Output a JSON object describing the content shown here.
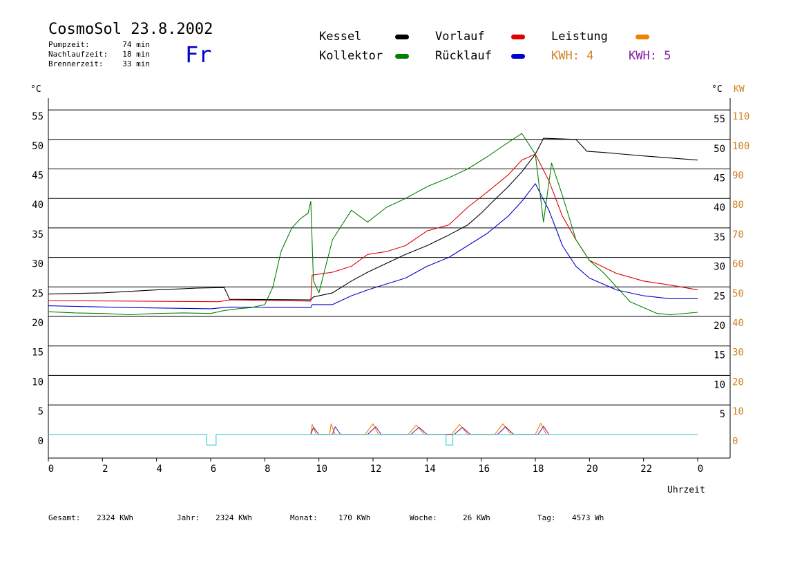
{
  "header": {
    "title": "CosmoSol 23.8.2002",
    "day": "Fr",
    "info": [
      {
        "label": "Pumpzeit:",
        "value": "74 min"
      },
      {
        "label": "Nachlaufzeit:",
        "value": "18 min"
      },
      {
        "label": "Brennerzeit:",
        "value": "33 min"
      }
    ]
  },
  "legend": {
    "kessel": {
      "label": "Kessel",
      "color": "#000000"
    },
    "kollektor": {
      "label": "Kollektor",
      "color": "#008000"
    },
    "vorlauf": {
      "label": "Vorlauf",
      "color": "#e00000"
    },
    "ruecklauf": {
      "label": "Rücklauf",
      "color": "#0000cc"
    },
    "leistung": {
      "label": "Leistung",
      "color": "#f08000"
    },
    "kwh4": {
      "label": "KWH: 4",
      "color": "#d08020"
    },
    "kwh5": {
      "label": "KWH: 5",
      "color": "#8020a0"
    }
  },
  "axes": {
    "left_unit": "°C",
    "right_unit": "°C",
    "right_unit2": "KW",
    "x_label": "Uhrzeit"
  },
  "footer": [
    {
      "label": "Gesamt:",
      "value": "2324 KWh"
    },
    {
      "label": "Jahr:",
      "value": "2324 KWh"
    },
    {
      "label": "Monat:",
      "value": "170 KWh"
    },
    {
      "label": "Woche:",
      "value": "26 KWh"
    },
    {
      "label": "Tag:",
      "value": "4573 Wh"
    }
  ],
  "chart_data": {
    "type": "line",
    "x_range": [
      0,
      24
    ],
    "x_ticks": [
      "0",
      "2",
      "4",
      "6",
      "8",
      "10",
      "12",
      "14",
      "16",
      "18",
      "20",
      "22",
      "0"
    ],
    "y_range": [
      -4,
      57
    ],
    "y_ticks_left": [
      "0",
      "5",
      "10",
      "15",
      "20",
      "25",
      "30",
      "35",
      "40",
      "45",
      "50",
      "55"
    ],
    "y_ticks_right": [
      "",
      "5",
      "10",
      "15",
      "20",
      "25",
      "30",
      "35",
      "40",
      "45",
      "50",
      "55"
    ],
    "y2_ticks_right": [
      "0",
      "10",
      "20",
      "30",
      "40",
      "50",
      "60",
      "70",
      "80",
      "90",
      "100",
      "110"
    ],
    "grid_y": true,
    "series": [
      {
        "key": "kessel",
        "name": "Kessel",
        "color": "#000000",
        "x": [
          0,
          2,
          4,
          5.5,
          6.5,
          6.7,
          9.7,
          9.8,
          10.5,
          11.2,
          11.8,
          12.5,
          13.2,
          14,
          14.8,
          15.5,
          16,
          16.5,
          17,
          17.5,
          18,
          18.3,
          19.5,
          19.9,
          20.5,
          22,
          24
        ],
        "y": [
          23.8,
          24.0,
          24.5,
          24.8,
          24.9,
          22.9,
          22.8,
          23.3,
          24.0,
          26.0,
          27.5,
          29.0,
          30.5,
          32.0,
          33.8,
          35.5,
          37.5,
          39.8,
          42.0,
          44.5,
          47.5,
          50.2,
          50.0,
          48.0,
          47.8,
          47.2,
          46.5
        ]
      },
      {
        "key": "vorlauf",
        "name": "Vorlauf",
        "color": "#e00000",
        "x": [
          0,
          3,
          6.3,
          6.7,
          9.7,
          9.75,
          10.5,
          11.2,
          11.8,
          12.5,
          13.2,
          14,
          14.8,
          15.5,
          16.2,
          17,
          17.5,
          18,
          18.5,
          19,
          19.5,
          20,
          21,
          22,
          23,
          24
        ],
        "y": [
          22.7,
          22.6,
          22.5,
          22.8,
          22.6,
          27.0,
          27.5,
          28.5,
          30.5,
          31.0,
          32.0,
          34.5,
          35.5,
          38.5,
          41.0,
          44.0,
          46.5,
          47.5,
          43.0,
          37.0,
          33.0,
          29.5,
          27.3,
          26.0,
          25.3,
          24.5
        ]
      },
      {
        "key": "ruecklauf",
        "name": "Rücklauf",
        "color": "#0000cc",
        "x": [
          0,
          3,
          6,
          6.7,
          9.7,
          9.75,
          10.5,
          11.2,
          11.8,
          12.5,
          13.2,
          14,
          14.8,
          15.5,
          16.2,
          17,
          17.5,
          18,
          18.5,
          19,
          19.5,
          20,
          21,
          22,
          23,
          24
        ],
        "y": [
          21.8,
          21.5,
          21.3,
          21.6,
          21.5,
          22.0,
          22.0,
          23.5,
          24.5,
          25.5,
          26.5,
          28.5,
          30.0,
          32.0,
          34.0,
          37.0,
          39.5,
          42.5,
          38.0,
          32.0,
          28.5,
          26.5,
          24.5,
          23.5,
          23.0,
          23.0
        ]
      },
      {
        "key": "kollektor",
        "name": "Kollektor",
        "color": "#008000",
        "x": [
          0,
          1,
          2,
          3,
          4,
          5,
          6,
          6.5,
          7,
          7.5,
          8,
          8.3,
          8.6,
          9,
          9.3,
          9.6,
          9.7,
          9.8,
          10,
          10.5,
          11.2,
          11.8,
          12.5,
          13.2,
          14,
          14.8,
          15.5,
          16.2,
          17,
          17.5,
          18,
          18.3,
          18.6,
          19,
          19.5,
          20,
          20.5,
          21,
          21.5,
          22,
          22.5,
          23,
          24
        ],
        "y": [
          20.8,
          20.6,
          20.5,
          20.3,
          20.5,
          20.6,
          20.5,
          21.0,
          21.3,
          21.5,
          22.0,
          25.0,
          31.0,
          35.0,
          36.5,
          37.5,
          39.5,
          26.0,
          24.0,
          33.0,
          38.0,
          36.0,
          38.5,
          40.0,
          42.0,
          43.5,
          45.0,
          47.0,
          49.5,
          51.0,
          47.5,
          36.0,
          46.0,
          40.5,
          33.0,
          29.5,
          27.5,
          25.0,
          22.5,
          21.5,
          20.5,
          20.3,
          20.7
        ]
      },
      {
        "key": "leistung",
        "name": "Leistung",
        "color": "#f08000",
        "x": [
          9.7,
          9.75,
          9.9,
          10.4,
          10.45,
          10.6,
          11.7,
          12.0,
          12.2,
          13.3,
          13.6,
          13.9,
          14.9,
          15.2,
          15.5,
          16.5,
          16.8,
          17.1,
          18.0,
          18.2,
          18.4
        ],
        "y": [
          0,
          1.7,
          0,
          0,
          1.8,
          0,
          0,
          1.8,
          0,
          0,
          1.6,
          0,
          0,
          1.7,
          0,
          0,
          1.8,
          0,
          0,
          1.9,
          0
        ]
      },
      {
        "key": "kwh5",
        "name": "KWH: 5",
        "color": "#8020a0",
        "x": [
          9.7,
          9.8,
          10.0,
          10.5,
          10.6,
          10.8,
          11.8,
          12.1,
          12.3,
          13.4,
          13.7,
          14.0,
          15.0,
          15.3,
          15.6,
          16.6,
          16.9,
          17.2,
          18.1,
          18.3,
          18.5
        ],
        "y": [
          0,
          1.2,
          0,
          0,
          1.3,
          0,
          0,
          1.3,
          0,
          0,
          1.2,
          0,
          0,
          1.2,
          0,
          0,
          1.3,
          0,
          0,
          1.4,
          0
        ]
      },
      {
        "key": "pump",
        "name": "",
        "color": "#40d0d0",
        "x": [
          0,
          5.85,
          5.85,
          6.2,
          6.2,
          14.7,
          14.7,
          14.95,
          14.95,
          24
        ],
        "y": [
          0,
          0,
          -1.8,
          -1.8,
          0,
          0,
          -1.8,
          -1.8,
          0,
          0
        ]
      }
    ]
  }
}
